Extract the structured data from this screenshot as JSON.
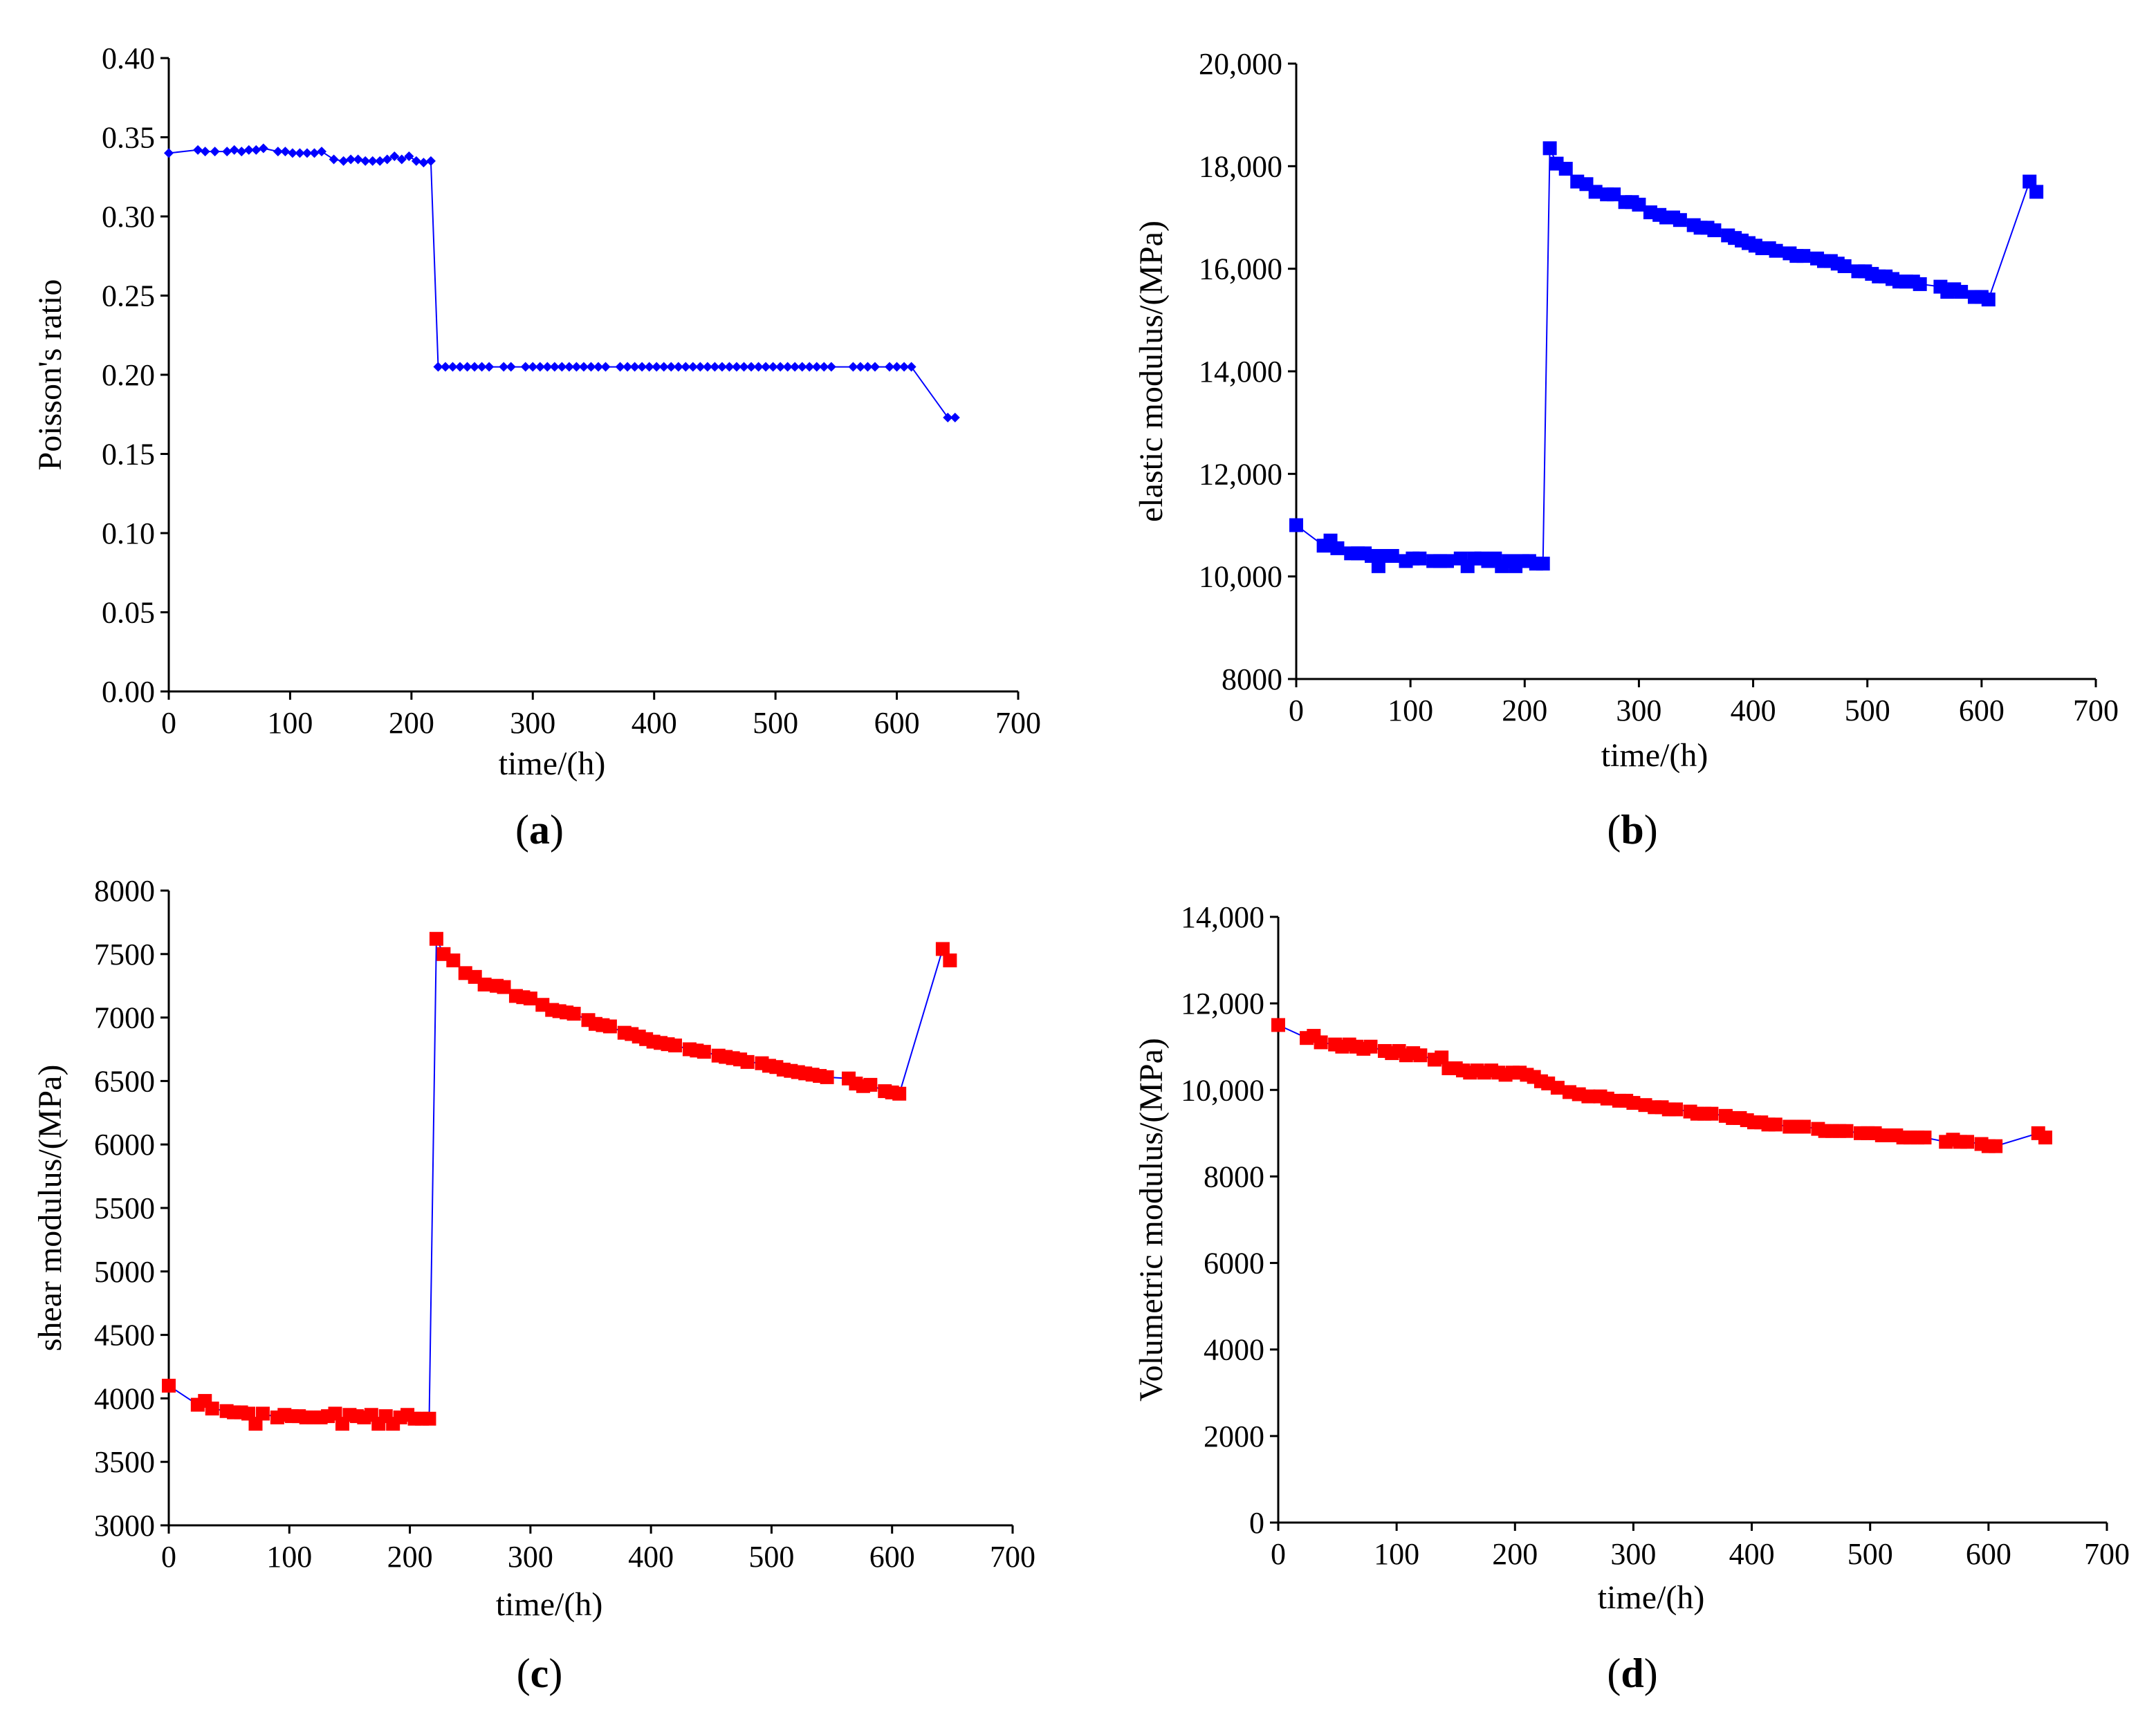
{
  "chart_data": [
    {
      "id": "a",
      "type": "line",
      "panel_label": "a",
      "xlabel": "time/(h)",
      "ylabel": "Poisson's ratio",
      "xlim": [
        0,
        700
      ],
      "ylim": [
        0.0,
        0.4
      ],
      "xticks": [
        0,
        100,
        200,
        300,
        400,
        500,
        600,
        700
      ],
      "yticks": [
        0.0,
        0.05,
        0.1,
        0.15,
        0.2,
        0.25,
        0.3,
        0.35,
        0.4
      ],
      "xtick_labels": [
        "0",
        "100",
        "200",
        "300",
        "400",
        "500",
        "600",
        "700"
      ],
      "ytick_labels": [
        "0.00",
        "0.05",
        "0.10",
        "0.15",
        "0.20",
        "0.25",
        "0.30",
        "0.35",
        "0.40"
      ],
      "marker": "diamond",
      "marker_color": "#0000ff",
      "line_color": "#0000ff",
      "series": [
        {
          "name": "Poisson's ratio",
          "x": [
            0,
            24,
            30,
            38,
            48,
            54,
            60,
            66,
            72,
            78,
            90,
            96,
            102,
            108,
            114,
            120,
            126,
            136,
            144,
            150,
            156,
            162,
            168,
            174,
            180,
            186,
            192,
            198,
            204,
            210,
            216,
            222,
            228,
            234,
            240,
            246,
            252,
            258,
            264,
            276,
            282,
            294,
            300,
            306,
            312,
            318,
            324,
            330,
            336,
            342,
            348,
            354,
            360,
            372,
            378,
            384,
            390,
            396,
            402,
            408,
            414,
            420,
            426,
            432,
            438,
            444,
            450,
            456,
            462,
            468,
            474,
            480,
            486,
            492,
            498,
            504,
            510,
            516,
            522,
            528,
            534,
            540,
            546,
            564,
            570,
            576,
            582,
            594,
            600,
            606,
            612,
            642,
            648
          ],
          "y": [
            0.34,
            0.342,
            0.341,
            0.341,
            0.341,
            0.342,
            0.341,
            0.342,
            0.342,
            0.343,
            0.341,
            0.341,
            0.34,
            0.34,
            0.34,
            0.34,
            0.341,
            0.336,
            0.335,
            0.336,
            0.336,
            0.335,
            0.335,
            0.335,
            0.336,
            0.338,
            0.336,
            0.338,
            0.335,
            0.334,
            0.335,
            0.205,
            0.205,
            0.205,
            0.205,
            0.205,
            0.205,
            0.205,
            0.205,
            0.205,
            0.205,
            0.205,
            0.205,
            0.205,
            0.205,
            0.205,
            0.205,
            0.205,
            0.205,
            0.205,
            0.205,
            0.205,
            0.205,
            0.205,
            0.205,
            0.205,
            0.205,
            0.205,
            0.205,
            0.205,
            0.205,
            0.205,
            0.205,
            0.205,
            0.205,
            0.205,
            0.205,
            0.205,
            0.205,
            0.205,
            0.205,
            0.205,
            0.205,
            0.205,
            0.205,
            0.205,
            0.205,
            0.205,
            0.205,
            0.205,
            0.205,
            0.205,
            0.205,
            0.205,
            0.205,
            0.205,
            0.205,
            0.205,
            0.205,
            0.205,
            0.205,
            0.173,
            0.173
          ]
        }
      ]
    },
    {
      "id": "b",
      "type": "line",
      "panel_label": "b",
      "xlabel": "time/(h)",
      "ylabel": "elastic  modulus/(MPa)",
      "xlim": [
        0,
        700
      ],
      "ylim": [
        8000,
        20000
      ],
      "xticks": [
        0,
        100,
        200,
        300,
        400,
        500,
        600,
        700
      ],
      "yticks": [
        8000,
        10000,
        12000,
        14000,
        16000,
        18000,
        20000
      ],
      "xtick_labels": [
        "0",
        "100",
        "200",
        "300",
        "400",
        "500",
        "600",
        "700"
      ],
      "ytick_labels": [
        "8000",
        "10,000",
        "12,000",
        "14,000",
        "16,000",
        "18,000",
        "20,000"
      ],
      "marker": "square",
      "marker_color": "#0000ff",
      "line_color": "#0000ff",
      "series": [
        {
          "name": "elastic modulus",
          "x": [
            0,
            24,
            30,
            36,
            48,
            54,
            60,
            66,
            72,
            78,
            84,
            96,
            102,
            108,
            120,
            126,
            132,
            144,
            150,
            156,
            162,
            168,
            174,
            180,
            186,
            192,
            198,
            204,
            210,
            216,
            222,
            228,
            236,
            246,
            254,
            262,
            272,
            278,
            288,
            294,
            300,
            310,
            318,
            324,
            330,
            336,
            348,
            354,
            360,
            366,
            378,
            384,
            390,
            396,
            402,
            408,
            414,
            420,
            432,
            438,
            444,
            456,
            462,
            468,
            474,
            480,
            492,
            498,
            504,
            510,
            516,
            522,
            528,
            534,
            540,
            546,
            564,
            570,
            576,
            582,
            594,
            600,
            606,
            642,
            648
          ],
          "y": [
            11000,
            10600,
            10700,
            10550,
            10450,
            10450,
            10450,
            10400,
            10200,
            10400,
            10400,
            10300,
            10350,
            10350,
            10300,
            10300,
            10300,
            10350,
            10200,
            10350,
            10350,
            10300,
            10350,
            10200,
            10300,
            10200,
            10300,
            10300,
            10250,
            10250,
            18350,
            18050,
            17950,
            17700,
            17650,
            17500,
            17450,
            17450,
            17300,
            17300,
            17250,
            17100,
            17050,
            17000,
            17000,
            16950,
            16850,
            16800,
            16800,
            16750,
            16650,
            16600,
            16550,
            16500,
            16450,
            16400,
            16400,
            16350,
            16300,
            16250,
            16250,
            16200,
            16150,
            16150,
            16100,
            16050,
            15950,
            15950,
            15900,
            15850,
            15850,
            15800,
            15750,
            15750,
            15750,
            15700,
            15650,
            15550,
            15600,
            15550,
            15450,
            15450,
            15400,
            17700,
            17500
          ]
        }
      ]
    },
    {
      "id": "c",
      "type": "line",
      "panel_label": "c",
      "xlabel": "time/(h)",
      "ylabel": "shear modulus/(MPa)",
      "xlim": [
        0,
        700
      ],
      "ylim": [
        3000,
        8000
      ],
      "xticks": [
        0,
        100,
        200,
        300,
        400,
        500,
        600,
        700
      ],
      "yticks": [
        3000,
        3500,
        4000,
        4500,
        5000,
        5500,
        6000,
        6500,
        7000,
        7500,
        8000
      ],
      "xtick_labels": [
        "0",
        "100",
        "200",
        "300",
        "400",
        "500",
        "600",
        "700"
      ],
      "ytick_labels": [
        "3000",
        "3500",
        "4000",
        "4500",
        "5000",
        "5500",
        "6000",
        "6500",
        "7000",
        "7500",
        "8000"
      ],
      "marker": "square",
      "marker_color": "#ff0000",
      "line_color": "#0000ff",
      "series": [
        {
          "name": "shear modulus",
          "x": [
            0,
            24,
            30,
            36,
            48,
            54,
            60,
            66,
            72,
            78,
            90,
            96,
            102,
            108,
            114,
            120,
            126,
            132,
            138,
            144,
            150,
            156,
            162,
            168,
            174,
            180,
            186,
            192,
            198,
            204,
            210,
            216,
            222,
            228,
            236,
            246,
            254,
            262,
            272,
            278,
            288,
            294,
            300,
            310,
            318,
            324,
            330,
            336,
            348,
            354,
            360,
            366,
            378,
            384,
            390,
            396,
            402,
            408,
            414,
            420,
            432,
            438,
            444,
            456,
            462,
            468,
            474,
            480,
            492,
            498,
            504,
            510,
            516,
            522,
            528,
            534,
            540,
            546,
            564,
            570,
            576,
            582,
            594,
            600,
            606,
            642,
            648
          ],
          "y": [
            4100,
            3950,
            3980,
            3920,
            3900,
            3890,
            3890,
            3880,
            3800,
            3880,
            3850,
            3870,
            3860,
            3860,
            3850,
            3850,
            3850,
            3860,
            3880,
            3800,
            3870,
            3860,
            3850,
            3870,
            3800,
            3860,
            3800,
            3850,
            3870,
            3840,
            3840,
            3840,
            7620,
            7500,
            7450,
            7350,
            7320,
            7260,
            7250,
            7240,
            7170,
            7160,
            7150,
            7100,
            7060,
            7050,
            7040,
            7030,
            6980,
            6950,
            6940,
            6930,
            6880,
            6870,
            6850,
            6830,
            6810,
            6800,
            6790,
            6780,
            6750,
            6740,
            6730,
            6700,
            6690,
            6680,
            6670,
            6650,
            6640,
            6620,
            6610,
            6590,
            6580,
            6570,
            6560,
            6550,
            6540,
            6530,
            6520,
            6480,
            6460,
            6470,
            6420,
            6410,
            6400,
            7540,
            7450
          ]
        }
      ]
    },
    {
      "id": "d",
      "type": "line",
      "panel_label": "d",
      "xlabel": "time/(h)",
      "ylabel": "Volumetric modulus/(MPa)",
      "xlim": [
        0,
        700
      ],
      "ylim": [
        0,
        14000
      ],
      "xticks": [
        0,
        100,
        200,
        300,
        400,
        500,
        600,
        700
      ],
      "yticks": [
        0,
        2000,
        4000,
        6000,
        8000,
        10000,
        12000,
        14000
      ],
      "xtick_labels": [
        "0",
        "100",
        "200",
        "300",
        "400",
        "500",
        "600",
        "700"
      ],
      "ytick_labels": [
        "0",
        "2000",
        "4000",
        "6000",
        "8000",
        "10,000",
        "12,000",
        "14,000"
      ],
      "marker": "square",
      "marker_color": "#ff0000",
      "line_color": "#0000ff",
      "series": [
        {
          "name": "volumetric modulus",
          "x": [
            0,
            24,
            30,
            36,
            48,
            54,
            60,
            66,
            72,
            78,
            90,
            96,
            102,
            108,
            114,
            120,
            132,
            138,
            144,
            150,
            156,
            162,
            168,
            174,
            180,
            186,
            192,
            198,
            204,
            210,
            216,
            222,
            228,
            236,
            246,
            254,
            262,
            272,
            278,
            288,
            294,
            300,
            310,
            318,
            324,
            330,
            336,
            348,
            354,
            360,
            366,
            378,
            384,
            390,
            396,
            402,
            408,
            414,
            420,
            432,
            438,
            444,
            456,
            462,
            468,
            474,
            480,
            492,
            498,
            504,
            510,
            516,
            522,
            528,
            534,
            540,
            546,
            564,
            570,
            576,
            582,
            594,
            600,
            606,
            642,
            648
          ],
          "y": [
            11500,
            11200,
            11250,
            11100,
            11050,
            11000,
            11050,
            11000,
            10950,
            11000,
            10900,
            10850,
            10900,
            10800,
            10850,
            10800,
            10700,
            10750,
            10500,
            10500,
            10450,
            10400,
            10450,
            10400,
            10450,
            10400,
            10350,
            10400,
            10400,
            10350,
            10300,
            10200,
            10150,
            10050,
            9950,
            9900,
            9850,
            9850,
            9800,
            9750,
            9750,
            9700,
            9650,
            9600,
            9600,
            9550,
            9550,
            9500,
            9450,
            9450,
            9450,
            9400,
            9350,
            9350,
            9300,
            9250,
            9250,
            9200,
            9200,
            9150,
            9150,
            9150,
            9100,
            9050,
            9050,
            9050,
            9050,
            9000,
            9000,
            9000,
            8950,
            8950,
            8950,
            8900,
            8900,
            8900,
            8900,
            8800,
            8850,
            8800,
            8800,
            8750,
            8700,
            8700,
            9000,
            8900
          ]
        }
      ]
    }
  ]
}
